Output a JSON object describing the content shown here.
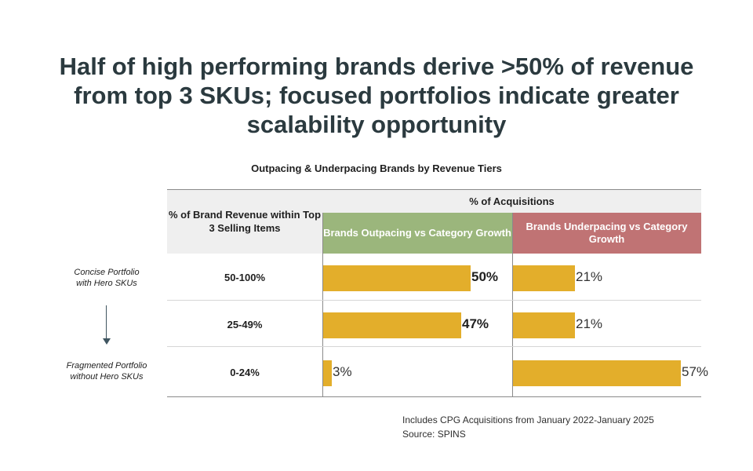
{
  "headline": "Half of high performing brands derive >50% of revenue from top 3 SKUs; focused portfolios indicate greater scalability opportunity",
  "subtitle": "Outpacing & Underpacing Brands by Revenue Tiers",
  "left_labels": {
    "top": "Concise Portfolio with Hero SKUs",
    "bottom": "Fragmented Portfolio without Hero SKUs"
  },
  "table": {
    "row_header": "% of Brand Revenue within Top 3 Selling Items",
    "group_header": "% of Acquisitions",
    "col_outpacing": "Brands Outpacing vs Category Growth",
    "col_underpacing": "Brands Underpacing vs Category Growth"
  },
  "colors": {
    "bar": "#e3ae2b",
    "outpacing_header": "#9bb67c",
    "underpacing_header": "#c07374",
    "headline": "#2b3a3f"
  },
  "chart_data": {
    "type": "bar",
    "orientation": "horizontal",
    "categories": [
      "50-100%",
      "25-49%",
      "0-24%"
    ],
    "series": [
      {
        "name": "Brands Outpacing vs Category Growth",
        "values": [
          50,
          47,
          3
        ],
        "labels": [
          "50%",
          "47%",
          "3%"
        ]
      },
      {
        "name": "Brands Underpacing vs Category Growth",
        "values": [
          21,
          21,
          57
        ],
        "labels": [
          "21%",
          "21%",
          "57%"
        ]
      }
    ],
    "bold_labels": [
      [
        true,
        true,
        false
      ],
      [
        false,
        false,
        false
      ]
    ]
  },
  "footnotes": {
    "line1": "Includes CPG Acquisitions from January 2022-January 2025",
    "line2": "Source: SPINS"
  }
}
